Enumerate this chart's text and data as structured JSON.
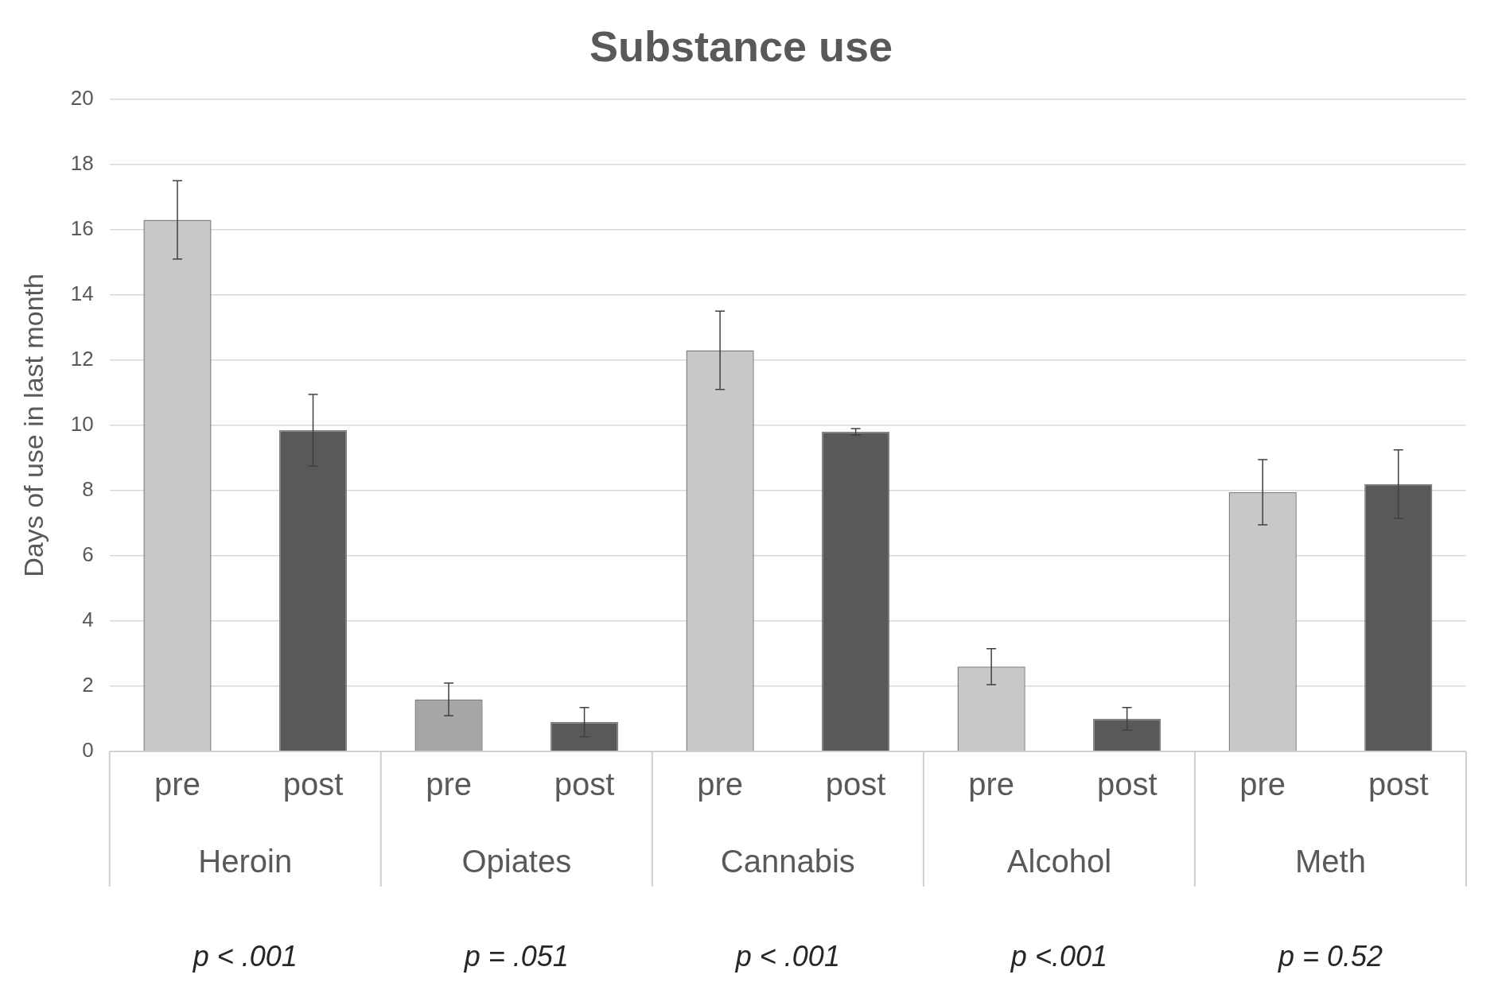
{
  "chart_data": {
    "type": "bar",
    "title": "Substance use",
    "ylabel": "Days of use in last month",
    "categories": [
      "pre",
      "post",
      "pre",
      "post",
      "pre",
      "post",
      "pre",
      "post",
      "pre",
      "post"
    ],
    "values": [
      16.3,
      9.85,
      1.6,
      0.9,
      12.3,
      9.8,
      2.6,
      1.0,
      7.95,
      8.2
    ],
    "errors": [
      1.2,
      1.1,
      0.5,
      0.45,
      1.2,
      0.1,
      0.55,
      0.35,
      1.0,
      1.05
    ],
    "colors": [
      "#c8c8c8",
      "#595959",
      "#a6a6a6",
      "#595959",
      "#c8c8c8",
      "#595959",
      "#c8c8c8",
      "#595959",
      "#c8c8c8",
      "#595959"
    ],
    "ylim": [
      0,
      20
    ],
    "yticks": [
      0,
      2,
      4,
      6,
      8,
      10,
      12,
      14,
      16,
      18,
      20
    ],
    "grid": "y",
    "legend": false,
    "annotations": [
      "Heroin",
      "Opiates",
      "Cannabis",
      "Alcohol",
      "Meth",
      "p < .001",
      "p = .051",
      "p < .001",
      "p <.001",
      "p = 0.52"
    ]
  }
}
